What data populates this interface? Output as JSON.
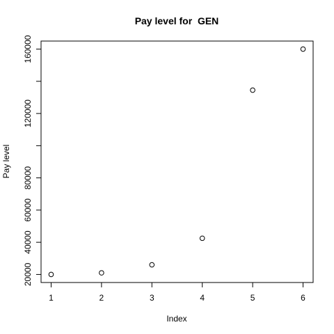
{
  "chart_data": {
    "type": "scatter",
    "title": "Pay level for  GEN",
    "xlabel": "Index",
    "ylabel": "Pay level",
    "xlim": [
      0.8,
      6.2
    ],
    "ylim": [
      15000,
      165000
    ],
    "x_ticks": [
      1,
      2,
      3,
      4,
      5,
      6
    ],
    "y_ticks": [
      20000,
      40000,
      60000,
      80000,
      100000,
      120000,
      140000,
      160000
    ],
    "y_tick_labels": [
      "20000",
      "40000",
      "60000",
      "80000",
      "",
      "120000",
      "",
      "160000"
    ],
    "grid": false,
    "marker": "open-circle",
    "points": [
      {
        "x": 1,
        "y": 20000
      },
      {
        "x": 2,
        "y": 21000
      },
      {
        "x": 3,
        "y": 26000
      },
      {
        "x": 4,
        "y": 42500
      },
      {
        "x": 5,
        "y": 134500
      },
      {
        "x": 6,
        "y": 160000
      }
    ]
  }
}
